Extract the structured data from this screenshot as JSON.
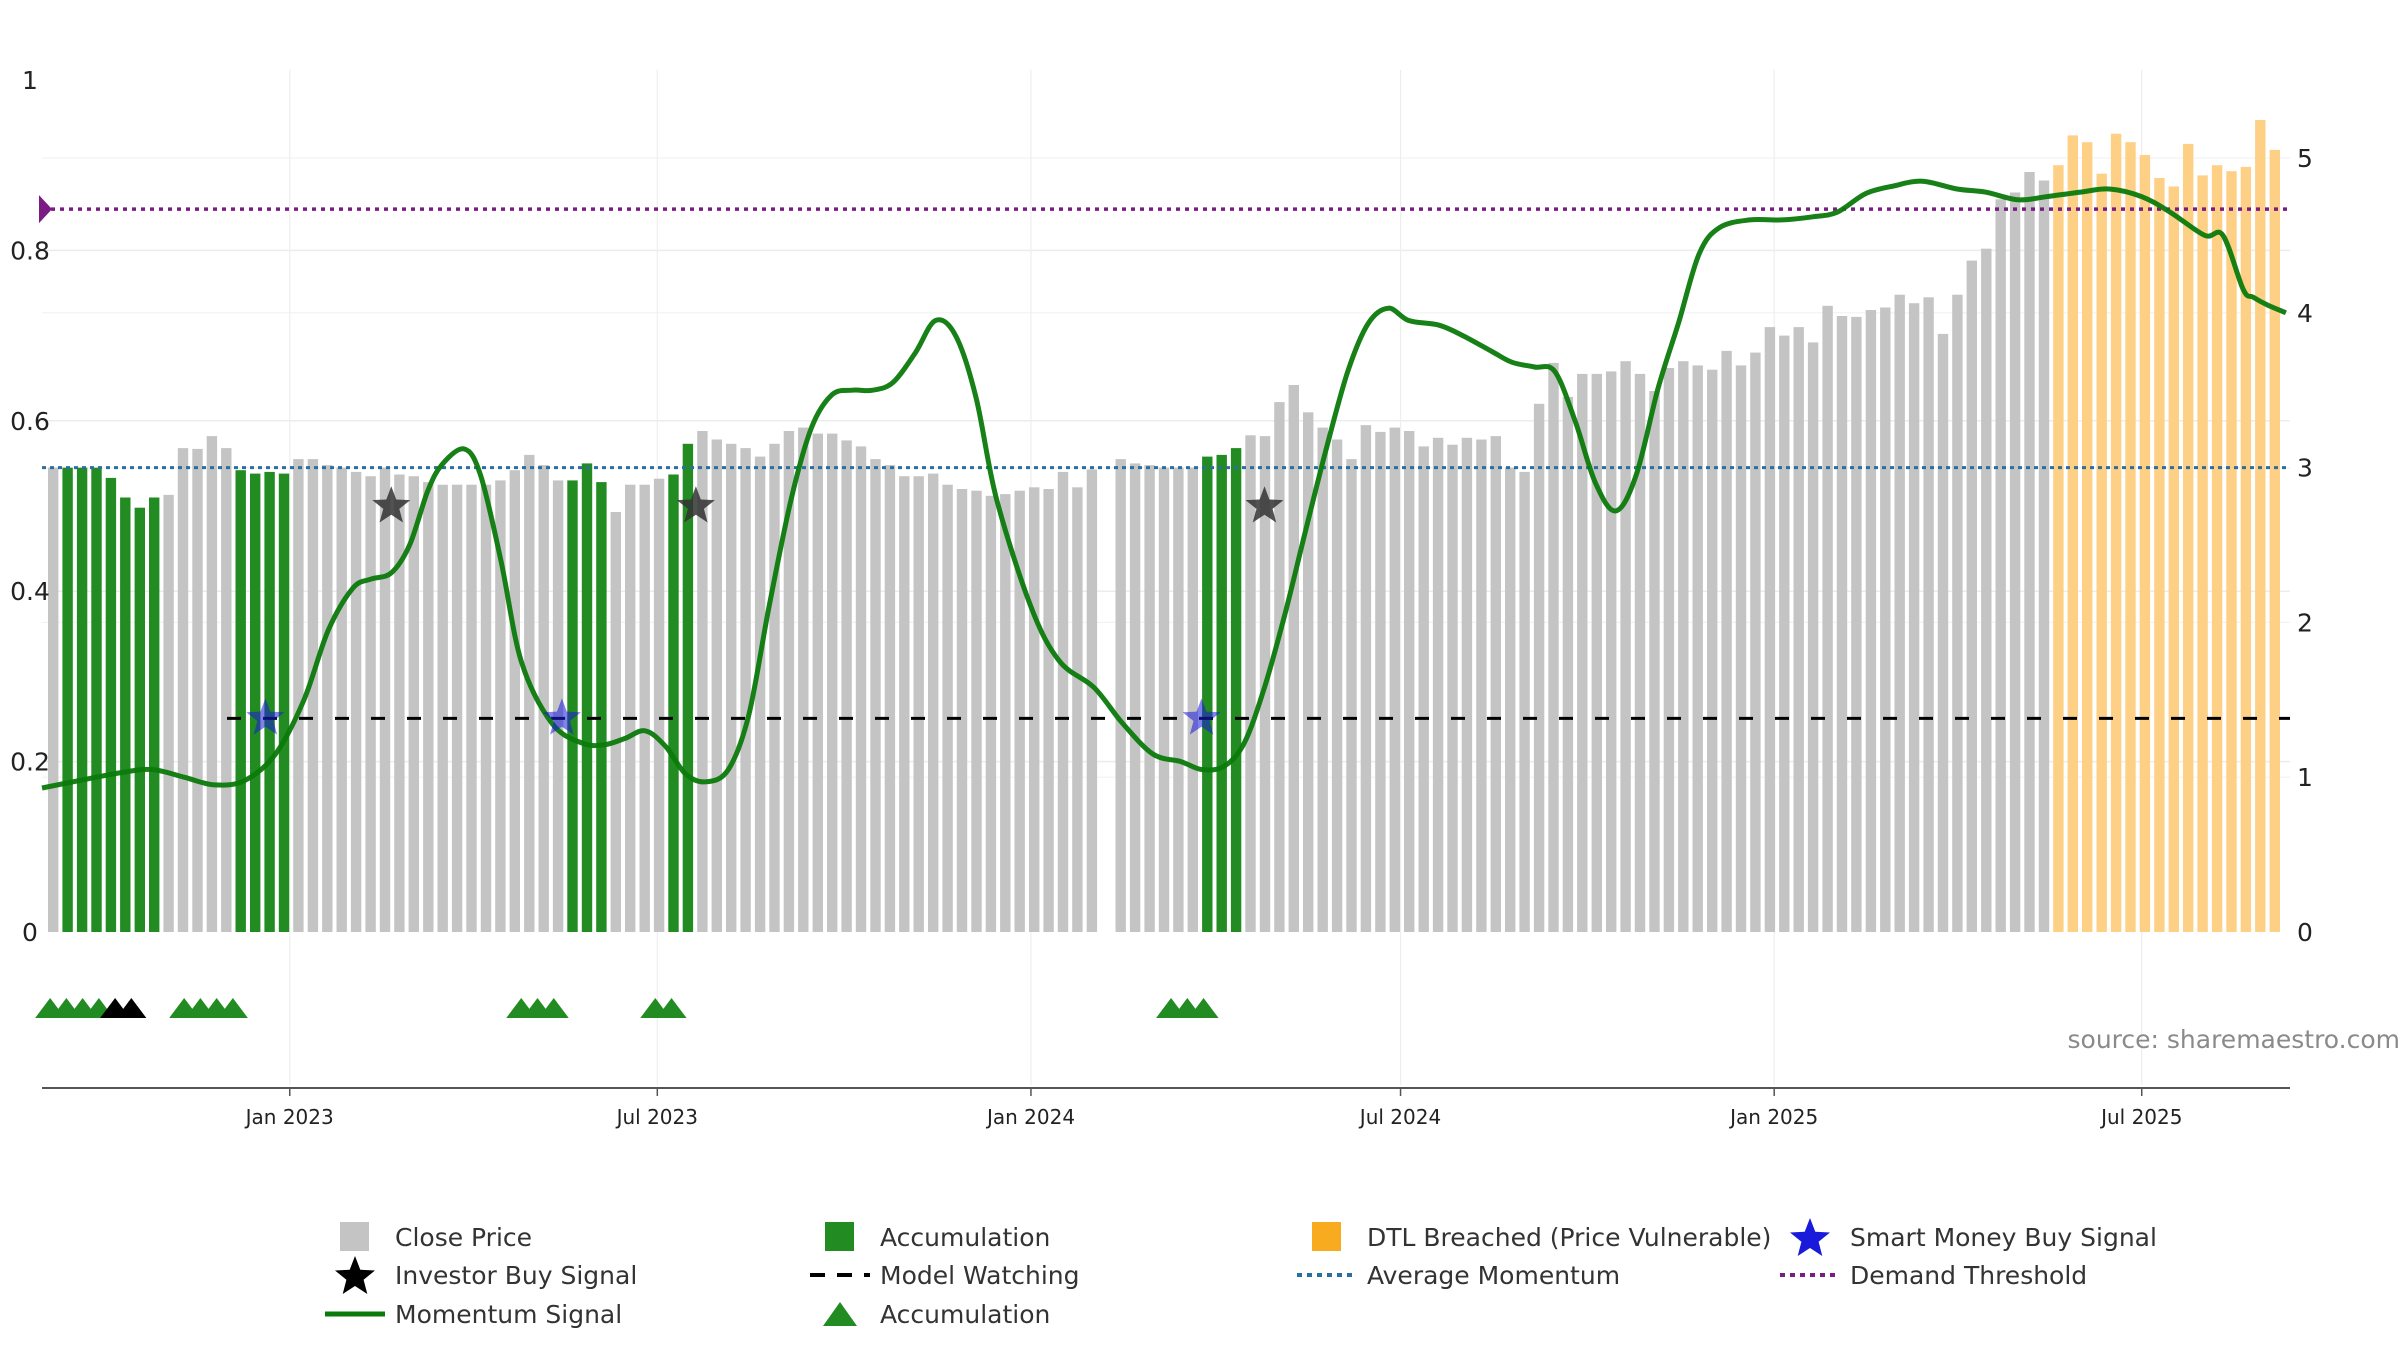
{
  "source_note": "source: sharemaestro.com",
  "colors": {
    "close_price": "#c4c4c4",
    "accumulation": "#228b22",
    "dtl_breached": "#fdd085",
    "momentum": "#0b7a0b",
    "average_momentum": "#2b6f9e",
    "model_watching": "#000000",
    "demand_threshold": "#7b1c85",
    "smart_money": "#1a1adb",
    "investor": "#000000"
  },
  "chart_data": {
    "type": "bar",
    "title": "",
    "xlabel": "",
    "ylabel": "",
    "y_left_ticks": [
      "0",
      "0.2",
      "0.4",
      "0.6",
      "0.8",
      "1"
    ],
    "y_right_ticks": [
      "0",
      "1",
      "2",
      "3",
      "4",
      "5"
    ],
    "y_left_range": [
      0,
      1
    ],
    "y_right_range": [
      0,
      5
    ],
    "x_ticks": [
      "Jan 2023",
      "Jul 2023",
      "Jan 2024",
      "Jul 2024",
      "Jan 2025",
      "Jul 2025"
    ],
    "grid": true,
    "legend_position": "bottom",
    "legend": [
      {
        "key": "close",
        "label": "Close Price"
      },
      {
        "key": "accum_bar",
        "label": "Accumulation"
      },
      {
        "key": "dtl",
        "label": "DTL Breached (Price Vulnerable)"
      },
      {
        "key": "smart",
        "label": "Smart Money Buy Signal"
      },
      {
        "key": "investor",
        "label": "Investor Buy Signal"
      },
      {
        "key": "watching",
        "label": "Model Watching"
      },
      {
        "key": "avgmom",
        "label": "Average Momentum"
      },
      {
        "key": "threshold",
        "label": "Demand Threshold"
      },
      {
        "key": "momentum",
        "label": "Momentum Signal"
      },
      {
        "key": "accum_tri",
        "label": "Accumulation"
      }
    ],
    "close_price_series": {
      "name": "Close Price",
      "values": [
        0.545,
        0.545,
        0.545,
        0.545,
        0.533,
        0.51,
        0.498,
        0.51,
        0.513,
        0.568,
        0.567,
        0.582,
        0.568,
        0.542,
        0.538,
        0.54,
        0.538,
        0.555,
        0.555,
        0.548,
        0.545,
        0.54,
        0.535,
        0.545,
        0.537,
        0.535,
        0.528,
        0.525,
        0.525,
        0.525,
        0.525,
        0.53,
        0.542,
        0.56,
        0.548,
        0.53,
        0.53,
        0.55,
        0.528,
        0.493,
        0.525,
        0.525,
        0.532,
        0.537,
        0.573,
        0.588,
        0.578,
        0.573,
        0.568,
        0.558,
        0.573,
        0.588,
        0.592,
        0.585,
        0.585,
        0.577,
        0.57,
        0.555,
        0.548,
        0.535,
        0.535,
        0.538,
        0.525,
        0.52,
        0.518,
        0.512,
        0.514,
        0.518,
        0.522,
        0.52,
        0.54,
        0.522,
        0.543,
        0.0,
        0.555,
        0.55,
        0.548,
        0.545,
        0.545,
        0.545,
        0.558,
        0.56,
        0.568,
        0.583,
        0.582,
        0.622,
        0.642,
        0.61,
        0.592,
        0.578,
        0.555,
        0.595,
        0.587,
        0.592,
        0.588,
        0.57,
        0.58,
        0.572,
        0.58,
        0.578,
        0.582,
        0.545,
        0.54,
        0.62,
        0.668,
        0.628,
        0.655,
        0.655,
        0.658,
        0.67,
        0.655,
        0.635,
        0.662,
        0.67,
        0.665,
        0.66,
        0.682,
        0.665,
        0.68,
        0.71,
        0.7,
        0.71,
        0.692,
        0.735,
        0.723,
        0.722,
        0.73,
        0.733,
        0.748,
        0.738,
        0.745,
        0.702,
        0.748,
        0.788,
        0.802,
        0.86,
        0.868,
        0.892,
        0.882,
        0.9,
        0.935,
        0.927,
        0.89,
        0.937,
        0.927,
        0.912,
        0.885,
        0.875,
        0.925,
        0.888,
        0.9,
        0.893,
        0.898,
        0.953,
        0.918
      ]
    },
    "accumulation_bar_indices": [
      1,
      2,
      3,
      4,
      5,
      6,
      7,
      13,
      14,
      15,
      16,
      36,
      37,
      38,
      43,
      44,
      80,
      81,
      82
    ],
    "dtl_breached_bar_indices": [
      139,
      140,
      141,
      142,
      143,
      144,
      145,
      146,
      147,
      148,
      149,
      150,
      151,
      152,
      153,
      154,
      155,
      156,
      157,
      158,
      159
    ],
    "momentum_series": {
      "name": "Momentum Signal",
      "x": [
        "2022-09-01",
        "2022-09-20",
        "2022-10-10",
        "2022-10-25",
        "2022-11-10",
        "2022-11-25",
        "2022-12-10",
        "2022-12-25",
        "2023-01-08",
        "2023-01-20",
        "2023-02-01",
        "2023-02-10",
        "2023-02-20",
        "2023-03-01",
        "2023-03-10",
        "2023-03-17",
        "2023-03-28",
        "2023-04-05",
        "2023-04-15",
        "2023-04-25",
        "2023-05-10",
        "2023-05-25",
        "2023-06-05",
        "2023-06-15",
        "2023-06-25",
        "2023-07-05",
        "2023-07-15",
        "2023-07-25",
        "2023-08-05",
        "2023-08-15",
        "2023-08-25",
        "2023-09-05",
        "2023-09-15",
        "2023-09-25",
        "2023-10-05",
        "2023-10-15",
        "2023-10-25",
        "2023-11-05",
        "2023-11-15",
        "2023-11-25",
        "2023-12-05",
        "2023-12-15",
        "2024-01-01",
        "2024-01-15",
        "2024-02-01",
        "2024-02-15",
        "2024-03-01",
        "2024-03-15",
        "2024-03-25",
        "2024-04-05",
        "2024-04-15",
        "2024-04-25",
        "2024-05-05",
        "2024-05-15",
        "2024-05-25",
        "2024-06-05",
        "2024-06-15",
        "2024-06-25",
        "2024-07-05",
        "2024-07-20",
        "2024-08-01",
        "2024-08-15",
        "2024-08-25",
        "2024-09-05",
        "2024-09-15",
        "2024-09-25",
        "2024-10-05",
        "2024-10-15",
        "2024-10-25",
        "2024-11-05",
        "2024-11-15",
        "2024-11-25",
        "2024-12-05",
        "2024-12-20",
        "2025-01-05",
        "2025-01-20",
        "2025-02-01",
        "2025-02-15",
        "2025-03-01",
        "2025-03-15",
        "2025-04-01",
        "2025-04-15",
        "2025-05-01",
        "2025-05-15",
        "2025-06-01",
        "2025-06-15",
        "2025-07-01",
        "2025-07-15",
        "2025-08-01",
        "2025-08-10",
        "2025-08-20",
        "2025-08-25",
        "2025-09-01",
        "2025-09-10"
      ],
      "values": [
        0.93,
        0.98,
        1.03,
        1.05,
        1.0,
        0.95,
        0.98,
        1.15,
        1.5,
        1.95,
        2.22,
        2.28,
        2.32,
        2.5,
        2.85,
        3.02,
        3.12,
        2.95,
        2.4,
        1.75,
        1.35,
        1.22,
        1.21,
        1.25,
        1.3,
        1.2,
        1.02,
        0.97,
        1.05,
        1.4,
        2.1,
        2.8,
        3.26,
        3.47,
        3.5,
        3.5,
        3.55,
        3.74,
        3.95,
        3.85,
        3.45,
        2.8,
        2.1,
        1.75,
        1.58,
        1.35,
        1.15,
        1.1,
        1.05,
        1.07,
        1.22,
        1.58,
        2.05,
        2.58,
        3.1,
        3.62,
        3.93,
        4.03,
        3.95,
        3.92,
        3.85,
        3.75,
        3.68,
        3.65,
        3.62,
        3.3,
        2.9,
        2.72,
        2.95,
        3.52,
        3.94,
        4.38,
        4.55,
        4.6,
        4.6,
        4.62,
        4.65,
        4.77,
        4.82,
        4.85,
        4.8,
        4.78,
        4.73,
        4.75,
        4.78,
        4.8,
        4.75,
        4.65,
        4.5,
        4.5,
        4.15,
        4.1,
        4.05,
        4.0
      ]
    },
    "average_momentum": 3.0,
    "model_watching_level": 1.38,
    "demand_threshold": 4.67,
    "smart_money_buy_signals": [
      {
        "x": "2022-12-20",
        "y": 1.38
      },
      {
        "x": "2023-05-15",
        "y": 1.38
      },
      {
        "x": "2024-03-25",
        "y": 1.38
      }
    ],
    "investor_buy_signals": [
      {
        "x": "2023-02-20",
        "y": 2.75
      },
      {
        "x": "2023-07-20",
        "y": 2.75
      },
      {
        "x": "2024-04-25",
        "y": 2.75
      }
    ],
    "accumulation_triangles": [
      "2022-09-05",
      "2022-09-13",
      "2022-09-21",
      "2022-09-29",
      "2022-11-10",
      "2022-11-18",
      "2022-11-26",
      "2022-12-04",
      "2023-04-25",
      "2023-05-03",
      "2023-05-11",
      "2023-06-30",
      "2023-07-08",
      "2024-03-10",
      "2024-03-18",
      "2024-03-26"
    ],
    "investor_triangles": [
      "2022-10-07",
      "2022-10-15"
    ]
  }
}
